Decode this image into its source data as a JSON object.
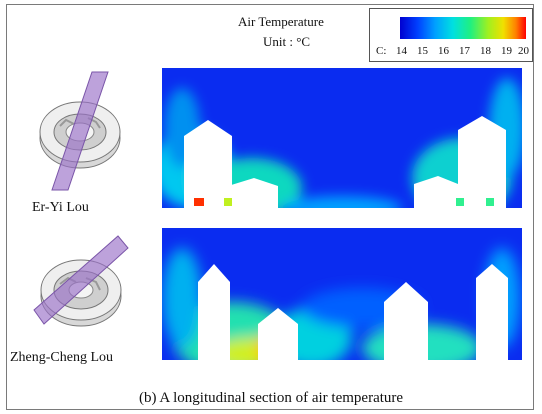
{
  "legend": {
    "title": "Air Temperature",
    "unit": "Unit : °C",
    "prefix": "C:",
    "ticks": [
      "14",
      "15",
      "16",
      "17",
      "18",
      "19",
      "20"
    ],
    "colors": [
      "#0000d0",
      "#00a0ff",
      "#20f080",
      "#f0e000",
      "#ff0000"
    ]
  },
  "panels": [
    {
      "name": "Er-Yi Lou"
    },
    {
      "name": "Zheng-Cheng Lou"
    }
  ],
  "caption": "(b) A longitudinal section of air temperature"
}
